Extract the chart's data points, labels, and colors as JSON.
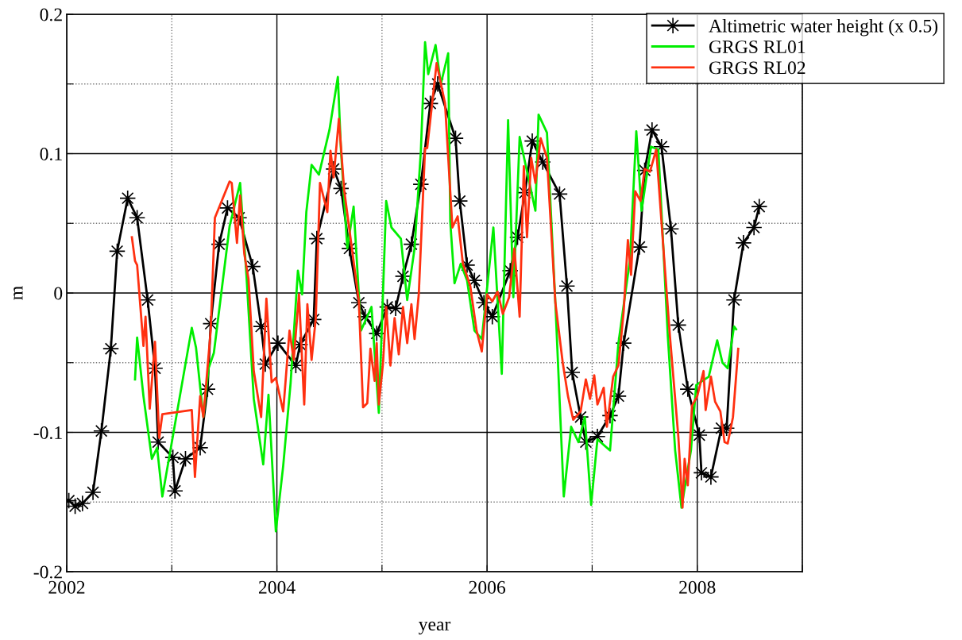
{
  "chart_data": {
    "type": "line",
    "xlabel": "year",
    "ylabel": "m",
    "xlim": [
      2002,
      2009
    ],
    "ylim": [
      -0.2,
      0.2
    ],
    "xticks": [
      2002,
      {
        "value": 2003,
        "label": null
      },
      2004,
      {
        "value": 2005,
        "label": null
      },
      2006,
      {
        "value": 2007,
        "label": null
      },
      2008,
      {
        "value": 2009,
        "label": null
      }
    ],
    "yticks": [
      -0.2,
      {
        "value": -0.15,
        "label": null
      },
      -0.1,
      {
        "value": -0.05,
        "label": null
      },
      0,
      {
        "value": 0.05,
        "label": null
      },
      0.1,
      {
        "value": 0.15,
        "label": null
      },
      0.2
    ],
    "grid": true,
    "legend": "top right",
    "series": [
      {
        "name": "Altimetric water height (x 0.5)",
        "color": "#000000",
        "marker": "star",
        "line_style": "solid",
        "x": [
          2002.02,
          2002.08,
          2002.15,
          2002.25,
          2002.33,
          2002.42,
          2002.48,
          2002.58,
          2002.67,
          2002.77,
          2002.84,
          2002.87,
          2003.01,
          2003.03,
          2003.13,
          2003.27,
          2003.34,
          2003.37,
          2003.45,
          2003.53,
          2003.64,
          2003.77,
          2003.85,
          2003.89,
          2004.01,
          2004.18,
          2004.22,
          2004.35,
          2004.38,
          2004.54,
          2004.61,
          2004.69,
          2004.78,
          2004.84,
          2004.95,
          2005.05,
          2005.13,
          2005.2,
          2005.28,
          2005.37,
          2005.46,
          2005.53,
          2005.7,
          2005.74,
          2005.81,
          2005.88,
          2005.97,
          2006.05,
          2006.22,
          2006.29,
          2006.36,
          2006.43,
          2006.53,
          2006.69,
          2006.76,
          2006.81,
          2006.89,
          2006.94,
          2007.05,
          2007.17,
          2007.25,
          2007.3,
          2007.45,
          2007.5,
          2007.57,
          2007.66,
          2007.75,
          2007.82,
          2007.91,
          2008.02,
          2008.04,
          2008.13,
          2008.23,
          2008.28,
          2008.35,
          2008.44,
          2008.54,
          2008.59
        ],
        "values": [
          -0.149,
          -0.153,
          -0.151,
          -0.143,
          -0.099,
          -0.04,
          0.03,
          0.068,
          0.054,
          -0.005,
          -0.054,
          -0.107,
          -0.118,
          -0.142,
          -0.119,
          -0.111,
          -0.069,
          -0.022,
          0.035,
          0.061,
          0.054,
          0.019,
          -0.024,
          -0.051,
          -0.036,
          -0.052,
          -0.037,
          -0.019,
          0.039,
          0.089,
          0.075,
          0.032,
          -0.007,
          -0.017,
          -0.029,
          -0.01,
          -0.011,
          0.012,
          0.035,
          0.078,
          0.136,
          0.15,
          0.111,
          0.066,
          0.02,
          0.009,
          -0.007,
          -0.017,
          0.016,
          0.04,
          0.072,
          0.109,
          0.094,
          0.071,
          0.005,
          -0.057,
          -0.089,
          -0.107,
          -0.103,
          -0.088,
          -0.074,
          -0.036,
          0.033,
          0.088,
          0.117,
          0.105,
          0.046,
          -0.023,
          -0.069,
          -0.102,
          -0.129,
          -0.132,
          -0.097,
          -0.097,
          -0.005,
          0.036,
          0.047,
          0.062
        ]
      },
      {
        "name": "GRGS RL01",
        "color": "#00ee00",
        "marker": "none",
        "line_style": "solid",
        "x": [
          2002.65,
          2002.67,
          2002.73,
          2002.81,
          2002.86,
          2002.91,
          2003.19,
          2003.23,
          2003.3,
          2003.35,
          2003.4,
          2003.55,
          2003.65,
          2003.71,
          2003.78,
          2003.87,
          2003.92,
          2003.99,
          2004.06,
          2004.13,
          2004.2,
          2004.24,
          2004.28,
          2004.33,
          2004.4,
          2004.5,
          2004.58,
          2004.61,
          2004.67,
          2004.73,
          2004.8,
          2004.9,
          2004.97,
          2005.04,
          2005.09,
          2005.18,
          2005.2,
          2005.24,
          2005.31,
          2005.37,
          2005.41,
          2005.44,
          2005.51,
          2005.56,
          2005.63,
          2005.65,
          2005.69,
          2005.75,
          2005.81,
          2005.88,
          2005.95,
          2006.06,
          2006.14,
          2006.2,
          2006.25,
          2006.31,
          2006.46,
          2006.49,
          2006.57,
          2006.65,
          2006.73,
          2006.8,
          2006.87,
          2006.93,
          2006.99,
          2007.05,
          2007.17,
          2007.25,
          2007.36,
          2007.42,
          2007.47,
          2007.56,
          2007.63,
          2007.72,
          2007.79,
          2007.85,
          2007.94,
          2007.99,
          2008.11,
          2008.19,
          2008.24,
          2008.29,
          2008.35,
          2008.37
        ],
        "values": [
          -0.062,
          -0.032,
          -0.074,
          -0.119,
          -0.111,
          -0.146,
          -0.025,
          -0.039,
          -0.089,
          -0.054,
          -0.043,
          0.048,
          0.079,
          0.013,
          -0.076,
          -0.123,
          -0.073,
          -0.171,
          -0.124,
          -0.065,
          0.016,
          -0.001,
          0.058,
          0.092,
          0.085,
          0.117,
          0.155,
          0.102,
          0.032,
          0.062,
          -0.027,
          -0.01,
          -0.086,
          0.066,
          0.047,
          0.039,
          0.024,
          -0.005,
          0.032,
          0.102,
          0.18,
          0.157,
          0.178,
          0.15,
          0.172,
          0.051,
          0.007,
          0.021,
          0.009,
          -0.027,
          -0.033,
          0.047,
          -0.058,
          0.124,
          -0.003,
          0.112,
          0.059,
          0.128,
          0.115,
          -0.007,
          -0.146,
          -0.096,
          -0.107,
          -0.089,
          -0.152,
          -0.105,
          -0.113,
          -0.036,
          0.024,
          0.116,
          0.059,
          0.105,
          0.103,
          -0.031,
          -0.113,
          -0.154,
          -0.113,
          -0.066,
          -0.06,
          -0.034,
          -0.05,
          -0.054,
          -0.024,
          -0.026
        ]
      },
      {
        "name": "GRGS RL02",
        "color": "#ff3010",
        "marker": "none",
        "line_style": "solid",
        "x": [
          2002.62,
          2002.65,
          2002.67,
          2002.73,
          2002.75,
          2002.79,
          2002.84,
          2002.88,
          2002.91,
          2003.19,
          2003.22,
          2003.27,
          2003.3,
          2003.37,
          2003.41,
          2003.55,
          2003.57,
          2003.62,
          2003.65,
          2003.69,
          2003.73,
          2003.78,
          2003.85,
          2003.9,
          2003.95,
          2003.99,
          2004.06,
          2004.12,
          2004.16,
          2004.21,
          2004.26,
          2004.29,
          2004.33,
          2004.37,
          2004.41,
          2004.48,
          2004.51,
          2004.54,
          2004.59,
          2004.64,
          2004.74,
          2004.78,
          2004.82,
          2004.86,
          2004.89,
          2004.93,
          2004.95,
          2004.97,
          2005.01,
          2005.04,
          2005.08,
          2005.12,
          2005.16,
          2005.2,
          2005.24,
          2005.28,
          2005.31,
          2005.35,
          2005.41,
          2005.43,
          2005.52,
          2005.6,
          2005.67,
          2005.72,
          2005.77,
          2005.84,
          2005.9,
          2005.95,
          2006.0,
          2006.05,
          2006.1,
          2006.15,
          2006.21,
          2006.26,
          2006.31,
          2006.35,
          2006.38,
          2006.42,
          2006.46,
          2006.51,
          2006.57,
          2006.65,
          2006.72,
          2006.77,
          2006.82,
          2006.89,
          2006.94,
          2006.98,
          2007.02,
          2007.05,
          2007.11,
          2007.14,
          2007.2,
          2007.25,
          2007.3,
          2007.34,
          2007.37,
          2007.41,
          2007.46,
          2007.5,
          2007.55,
          2007.61,
          2007.68,
          2007.74,
          2007.82,
          2007.86,
          2007.88,
          2007.91,
          2007.95,
          2008.0,
          2008.06,
          2008.08,
          2008.13,
          2008.17,
          2008.22,
          2008.26,
          2008.29,
          2008.34,
          2008.39
        ],
        "values": [
          0.04,
          0.023,
          0.02,
          -0.038,
          -0.017,
          -0.083,
          -0.035,
          -0.104,
          -0.087,
          -0.084,
          -0.132,
          -0.074,
          -0.089,
          -0.027,
          0.054,
          0.08,
          0.079,
          0.036,
          0.07,
          0.028,
          0.01,
          -0.056,
          -0.089,
          -0.004,
          -0.064,
          -0.061,
          -0.085,
          -0.027,
          -0.048,
          -0.001,
          -0.08,
          -0.008,
          -0.048,
          -0.018,
          0.079,
          0.058,
          0.102,
          0.083,
          0.125,
          0.074,
          0.017,
          -0.006,
          -0.082,
          -0.079,
          -0.04,
          -0.063,
          -0.036,
          -0.08,
          -0.05,
          -0.01,
          -0.052,
          -0.018,
          -0.044,
          -0.01,
          -0.036,
          -0.008,
          -0.033,
          -0.001,
          0.104,
          0.104,
          0.165,
          0.136,
          0.047,
          0.055,
          0.021,
          0.005,
          -0.027,
          -0.042,
          -0.001,
          -0.006,
          0.001,
          -0.015,
          -0.003,
          0.032,
          -0.017,
          0.091,
          0.04,
          0.097,
          0.079,
          0.111,
          0.097,
          -0.007,
          -0.05,
          -0.074,
          -0.091,
          -0.085,
          -0.062,
          -0.076,
          -0.059,
          -0.08,
          -0.068,
          -0.096,
          -0.06,
          -0.052,
          -0.013,
          0.038,
          0.013,
          0.073,
          0.066,
          0.089,
          0.087,
          0.103,
          0.03,
          -0.031,
          -0.103,
          -0.154,
          -0.119,
          -0.138,
          -0.081,
          -0.074,
          -0.056,
          -0.084,
          -0.06,
          -0.078,
          -0.085,
          -0.107,
          -0.108,
          -0.089,
          -0.04
        ]
      }
    ]
  }
}
